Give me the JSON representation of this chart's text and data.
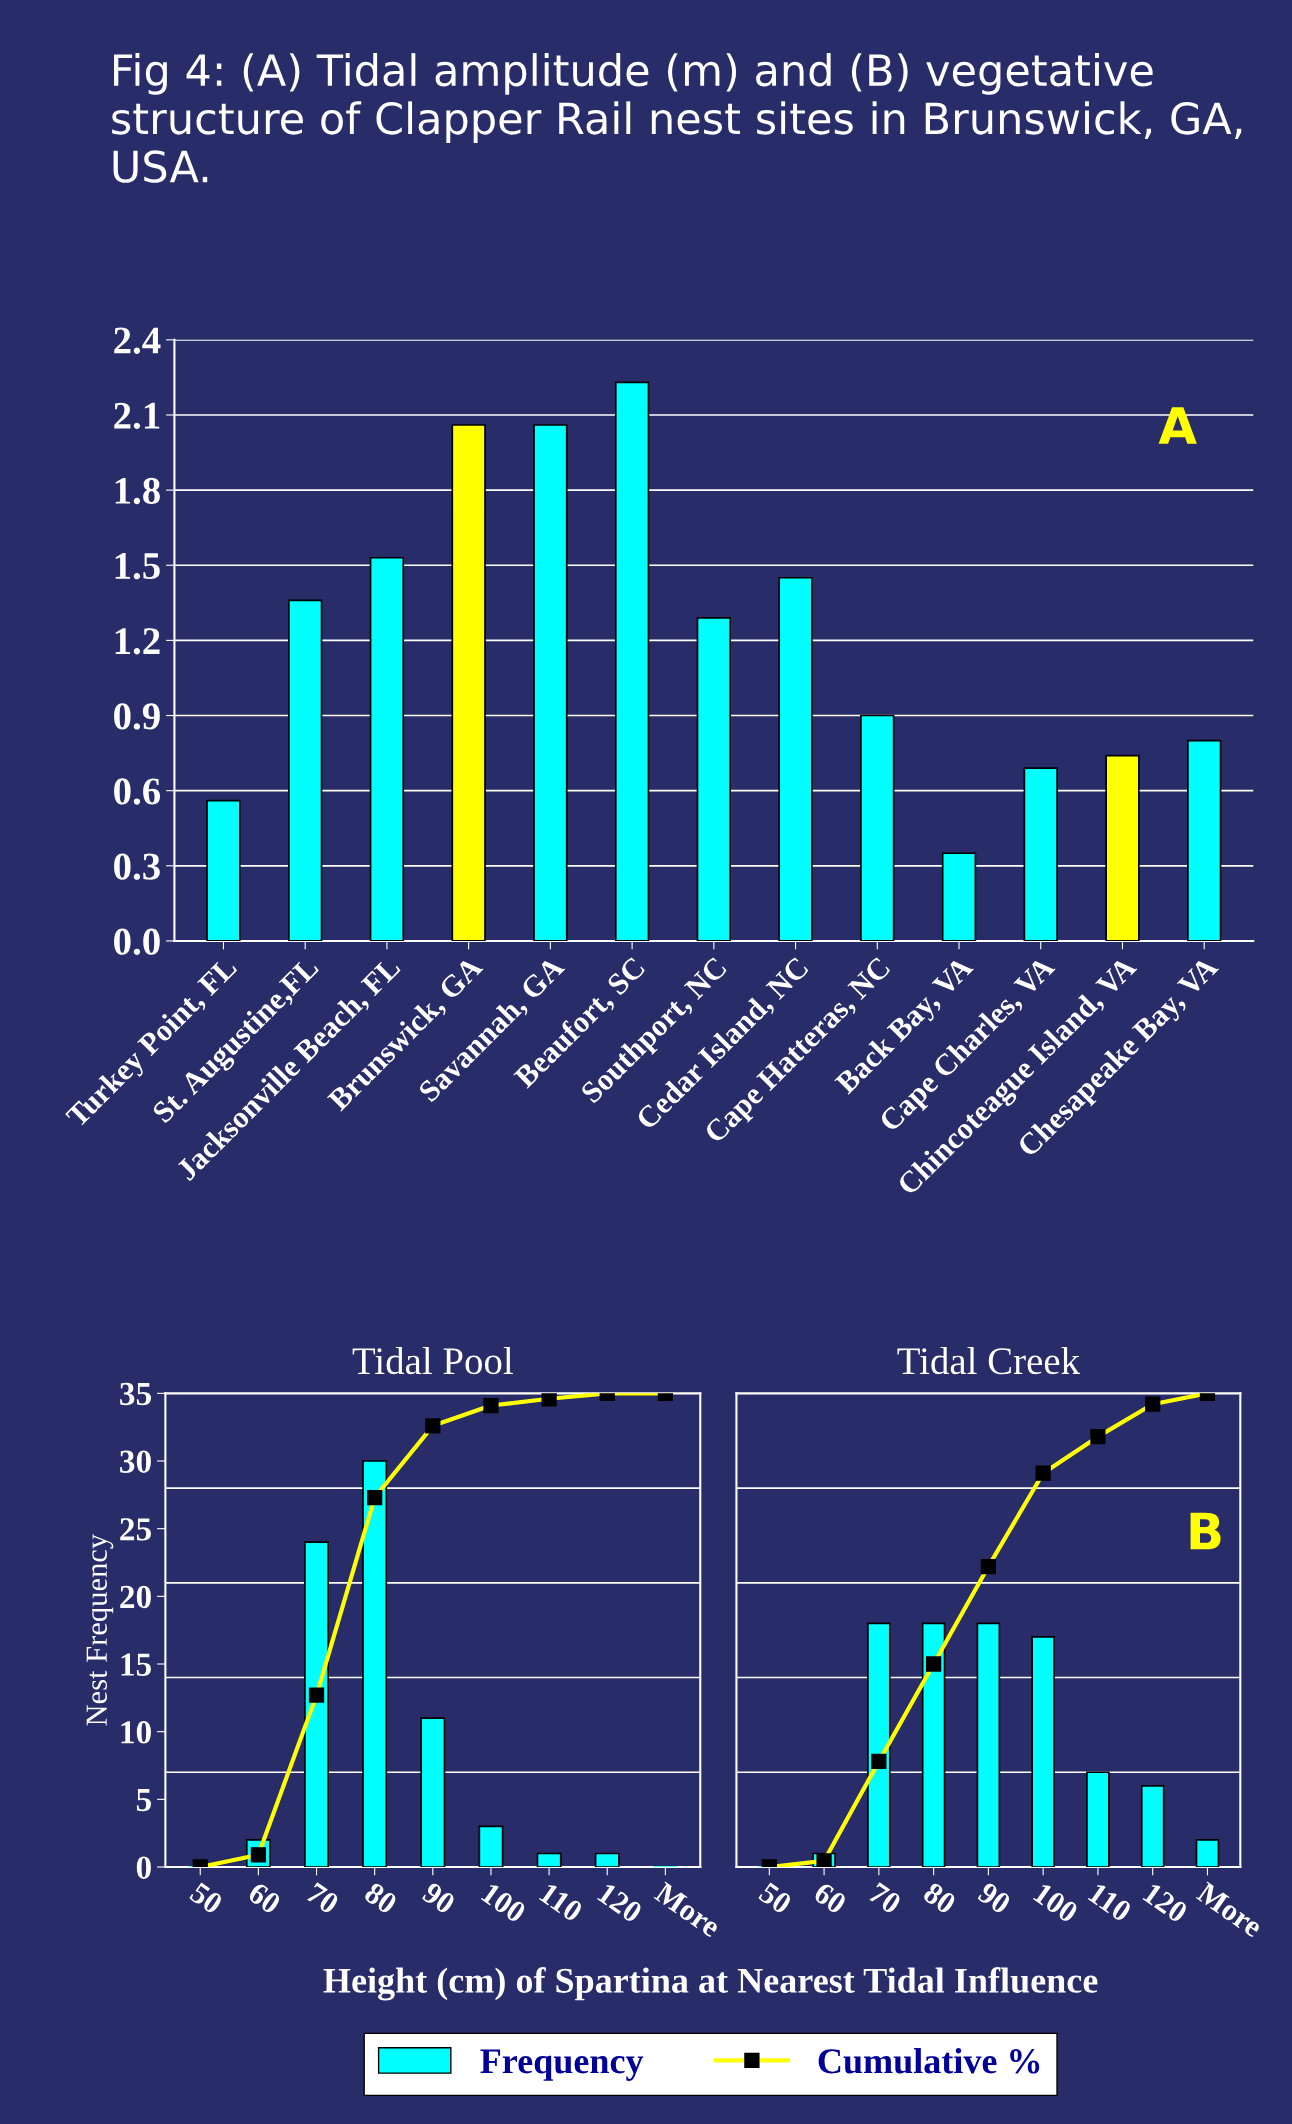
{
  "chart_data": [
    {
      "type": "bar",
      "title": "Fig 4: (A) Tidal amplitude (m) and (B) vegetative structure of Clapper Rail nest sites in Brunswick, GA, USA.",
      "categories": [
        "Turkey Point, FL",
        "St. Augustine,FL",
        "Jacksonville Beach, FL",
        "Brunswick, GA",
        "Savannah, GA",
        "Beaufort, SC",
        "Southport, NC",
        "Cedar Island, NC",
        "Cape Hatteras, NC",
        "Back Bay, VA",
        "Cape Charles, VA",
        "Chincoteague Island, VA",
        "Chesapeake Bay, VA"
      ],
      "values": [
        0.56,
        1.36,
        1.53,
        2.06,
        2.06,
        2.23,
        1.29,
        1.45,
        0.9,
        0.35,
        0.69,
        0.74,
        0.8
      ],
      "colors": [
        "#00ffff",
        "#00ffff",
        "#00ffff",
        "#ffff00",
        "#00ffff",
        "#00ffff",
        "#00ffff",
        "#00ffff",
        "#00ffff",
        "#00ffff",
        "#00ffff",
        "#ffff00",
        "#00ffff"
      ],
      "ylim": [
        0,
        2.4
      ],
      "yticks": [
        {
          "value": 0,
          "label": "0.0"
        },
        0.3,
        0.6,
        0.9,
        1.2,
        1.5,
        1.8,
        2.1,
        2.4
      ],
      "grid": "y",
      "annotations": [
        "A"
      ]
    },
    {
      "type": "bar",
      "title": "Tidal Pool",
      "ylabel": "Nest Frequency",
      "xlabel": "Height (cm) of Spartina at Nearest Tidal Influence",
      "categories": [
        "50",
        "60",
        "70",
        "80",
        "90",
        "100",
        "110",
        "120",
        "More"
      ],
      "series": [
        {
          "type": "bar",
          "color": "#00ffff",
          "values": [
            0,
            2,
            24,
            30,
            11,
            3,
            1,
            1,
            0
          ]
        },
        {
          "type": "line",
          "color": "#ffff00",
          "marker": "square",
          "values": [
            0,
            0.9,
            12.7,
            27.3,
            32.6,
            34.1,
            34.6,
            35,
            35
          ]
        }
      ],
      "ylim": [
        0,
        35
      ],
      "yticks": [
        0,
        5,
        10,
        15,
        20,
        25,
        30,
        35
      ],
      "ref_lines": [
        {
          "axis": "y",
          "value": 7,
          "color": "#ffffff"
        },
        {
          "axis": "y",
          "value": 14,
          "color": "#ffffff"
        },
        {
          "axis": "y",
          "value": 21,
          "color": "#ffffff"
        },
        {
          "axis": "y",
          "value": 28,
          "color": "#ffffff"
        }
      ]
    },
    {
      "type": "bar",
      "title": "Tidal Creek",
      "categories": [
        "50",
        "60",
        "70",
        "80",
        "90",
        "100",
        "110",
        "120",
        "More"
      ],
      "series": [
        {
          "name": "Frequency",
          "type": "bar",
          "color": "#00ffff",
          "values": [
            0,
            1,
            18,
            18,
            18,
            17,
            7,
            6,
            2
          ]
        },
        {
          "name": "Cumulative %",
          "type": "line",
          "color": "#ffff00",
          "marker": "square",
          "values": [
            0,
            0.45,
            7.8,
            15,
            22.2,
            29.1,
            31.8,
            34.2,
            35
          ]
        }
      ],
      "ylim": [
        0,
        35
      ],
      "tick_labels": "x",
      "ref_lines": [
        {
          "axis": "y",
          "value": 7,
          "color": "#ffffff"
        },
        {
          "axis": "y",
          "value": 14,
          "color": "#ffffff"
        },
        {
          "axis": "y",
          "value": 21,
          "color": "#ffffff"
        },
        {
          "axis": "y",
          "value": 28,
          "color": "#ffffff"
        }
      ],
      "annotations": [
        "B"
      ],
      "legend": "bottom"
    }
  ]
}
